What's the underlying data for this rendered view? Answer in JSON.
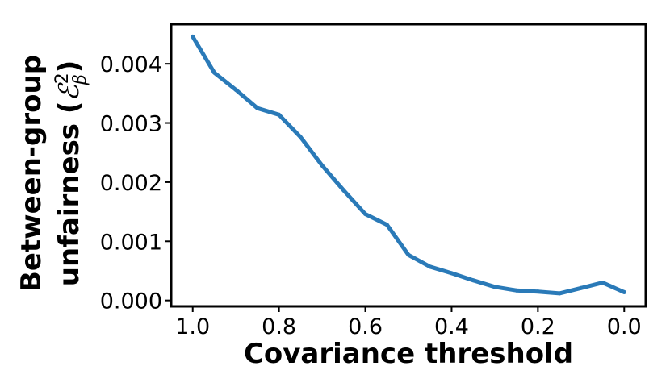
{
  "chart_data": {
    "type": "line",
    "xlabel": "Covariance threshold",
    "ylabel_line1": "Between-group",
    "ylabel_line2_prefix": "unfairness (",
    "ylabel_symbol": "ℰ",
    "ylabel_sub": "β",
    "ylabel_sup": "2",
    "ylabel_suffix": ")",
    "x_inverted": true,
    "xlim": [
      1.05,
      -0.05
    ],
    "ylim": [
      -0.0001,
      0.00467
    ],
    "x_ticks": [
      1.0,
      0.8,
      0.6,
      0.4,
      0.2,
      0.0
    ],
    "x_tick_labels": [
      "1.0",
      "0.8",
      "0.6",
      "0.4",
      "0.2",
      "0.0"
    ],
    "y_ticks": [
      0.0,
      0.001,
      0.002,
      0.003,
      0.004
    ],
    "y_tick_labels": [
      "0.000",
      "0.001",
      "0.002",
      "0.003",
      "0.004"
    ],
    "grid": false,
    "series": [
      {
        "color": "#2a7ab8",
        "x": [
          1.0,
          0.95,
          0.9,
          0.85,
          0.8,
          0.75,
          0.7,
          0.65,
          0.6,
          0.55,
          0.5,
          0.45,
          0.4,
          0.35,
          0.3,
          0.25,
          0.2,
          0.15,
          0.1,
          0.05,
          0.0
        ],
        "y": [
          0.00446,
          0.00385,
          0.00356,
          0.00325,
          0.00314,
          0.00276,
          0.00228,
          0.00186,
          0.00146,
          0.00128,
          0.00077,
          0.00057,
          0.00046,
          0.00034,
          0.00023,
          0.00017,
          0.00015,
          0.00012,
          0.00021,
          0.0003,
          0.00014
        ]
      }
    ]
  }
}
